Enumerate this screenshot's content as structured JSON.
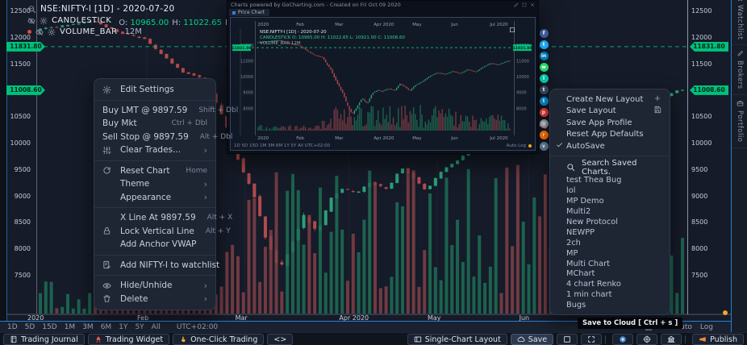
{
  "legend": {
    "symbol_text": "NSE:NIFTY-I [1D] - 2020-07-20",
    "series_name": "CANDLESTICK",
    "ohlc_items": [
      {
        "k": "O:",
        "v": "10965.00"
      },
      {
        "k": "H:",
        "v": "11022.65"
      },
      {
        "k": "L:",
        "v": "10921.00"
      },
      {
        "k": "C:",
        "v": "11008.60"
      }
    ],
    "volume_label": "VOLUME_BAR",
    "volume_value": "12M"
  },
  "context_menu": {
    "sections": [
      [
        {
          "label": "Edit Settings",
          "icon": "gear"
        }
      ],
      [
        {
          "label": "Buy LMT @ 9897.59",
          "shortcut": "Shift + Dbl",
          "flush": true
        },
        {
          "label": "Buy Mkt",
          "shortcut": "Ctrl + Dbl",
          "flush": true
        },
        {
          "label": "Sell Stop @ 9897.59",
          "shortcut": "Alt + Dbl",
          "flush": true
        },
        {
          "label": "Clear Trades...",
          "icon": "sliders",
          "chevron": true
        }
      ],
      [
        {
          "label": "Reset Chart",
          "icon": "refresh",
          "shortcut": "Home"
        },
        {
          "label": "Theme",
          "chevron": true
        },
        {
          "label": "Appearance",
          "chevron": true
        }
      ],
      [
        {
          "label": "X Line At 9897.59",
          "shortcut": "Alt + X"
        },
        {
          "label": "Lock Vertical Line",
          "icon": "lock",
          "shortcut": "Alt + Y"
        },
        {
          "label": "Add Anchor VWAP"
        }
      ],
      [
        {
          "label": "Add NIFTY-I to watchlist",
          "icon": "watchlist-add"
        }
      ],
      [
        {
          "label": "Hide/Unhide",
          "icon": "eye",
          "chevron": true
        },
        {
          "label": "Delete",
          "icon": "trash",
          "chevron": true
        }
      ]
    ]
  },
  "layout_menu": {
    "items": [
      {
        "label": "Create New Layout",
        "right_icon": "plus"
      },
      {
        "label": "Save Layout",
        "right_icon": "save"
      },
      {
        "label": "Save App Profile"
      },
      {
        "label": "Reset App Defaults"
      },
      {
        "label": "AutoSave",
        "checked": true
      }
    ],
    "search_label": "Search Saved Charts.",
    "saved_charts": [
      "test Thea Bug",
      "lol",
      "MP Demo",
      "Multi2",
      "New Protocol",
      "NEWPP",
      "2ch",
      "MP",
      "Multi Chart",
      "MChart",
      "4 chart Renko",
      "1 min chart",
      "Bugs"
    ]
  },
  "tooltip_text": "Save to Cloud [ Ctrl + s ]",
  "timeframe_bar": {
    "items": [
      "1D",
      "5D",
      "15D",
      "1M",
      "3M",
      "6M",
      "1Y",
      "5Y",
      "All"
    ],
    "timezone": "UTC+02:00",
    "auto": "Auto",
    "log": "Log"
  },
  "bottom_bar": {
    "left": [
      {
        "label": "Trading Journal",
        "icon": "journal"
      },
      {
        "label": "Trading Widget",
        "icon": "rocket"
      },
      {
        "label": "One-Click Trading",
        "icon": "one-click"
      },
      {
        "label": "<>"
      }
    ],
    "right": [
      {
        "label": "Single-Chart Layout",
        "icon": "layout"
      },
      {
        "label": "Save",
        "icon": "cloud",
        "active": true
      },
      {
        "icon": "frame"
      },
      {
        "icon": "expand"
      },
      {
        "divider": true
      },
      {
        "icon": "chat"
      },
      {
        "icon": "target"
      },
      {
        "icon": "bank"
      },
      {
        "divider": true
      },
      {
        "label": "Publish",
        "icon": "megaphone"
      }
    ]
  },
  "sidebar": {
    "tabs": [
      {
        "label": "Watchlist",
        "icon": "bookmark"
      },
      {
        "label": "Brokers",
        "icon": "wrench"
      },
      {
        "label": "Portfolio",
        "icon": "portfolio"
      }
    ]
  },
  "floating_window": {
    "title": "Charts powered by GoCharting.com - Created on Fri Oct 09 2020",
    "tab": "Price Chart",
    "legend_symbol": "NSE:NIFTY-I [1D] - 2020-07-20",
    "legend_series": "CANDLESTICK O: 10965.00 H: 11022.65 L: 10921.00 C: 11008.60",
    "legend_volume": "VOLUME_BAR 12M",
    "months": [
      "2020",
      "Feb",
      "Mar",
      "Apr 2020",
      "May",
      "Jun",
      "Jul 2020"
    ],
    "month_fracs": [
      0.01,
      0.16,
      0.31,
      0.46,
      0.61,
      0.76,
      0.91
    ],
    "toolbar_left": "1D  5D  15D  1M  3M  6M  1Y  5Y  All      UTC+02:00",
    "toolbar_right": "Auto   Log",
    "level_label": "11831.80"
  },
  "share_icons": [
    {
      "name": "facebook",
      "color": "#3b5998",
      "glyph": "f"
    },
    {
      "name": "twitter",
      "color": "#1da1f2",
      "glyph": "t"
    },
    {
      "name": "linkedin",
      "color": "#0077b5",
      "glyph": "in"
    },
    {
      "name": "whatsapp",
      "color": "#25d366",
      "glyph": "w"
    },
    {
      "name": "line",
      "color": "#06c1a5",
      "glyph": "l"
    },
    {
      "name": "tumblr",
      "color": "#35465c",
      "glyph": "t"
    },
    {
      "name": "telegram",
      "color": "#0088cc",
      "glyph": "t"
    },
    {
      "name": "pinterest",
      "color": "#e53935",
      "glyph": "p"
    },
    {
      "name": "email",
      "color": "#90949c",
      "glyph": "@"
    },
    {
      "name": "reddit",
      "color": "#ff6f00",
      "glyph": "r"
    },
    {
      "name": "vk",
      "color": "#5f7d95",
      "glyph": "v"
    }
  ],
  "chart_data": {
    "type": "candlestick",
    "symbol": "NSE:NIFTY-I",
    "interval": "1D",
    "date": "2020-07-20",
    "ohlc": {
      "open": 10965.0,
      "high": 11022.65,
      "low": 10921.0,
      "close": 11008.6
    },
    "volume_label": "12M",
    "price_levels": [
      {
        "label": "11831.80",
        "price": 11831.8,
        "dashed": true
      },
      {
        "label": "11008.60",
        "price": 11008.6,
        "dashed": false
      }
    ],
    "y_ticks": [
      12500,
      12000,
      11500,
      10500,
      10000,
      9500,
      9000,
      8500,
      8000,
      7500
    ],
    "x_ticks": [
      {
        "label": "2020",
        "f": 0.0
      },
      {
        "label": "Feb",
        "f": 0.17
      },
      {
        "label": "Mar",
        "f": 0.322
      },
      {
        "label": "Apr 2020",
        "f": 0.483
      },
      {
        "label": "May",
        "f": 0.62
      },
      {
        "label": "Jun",
        "f": 0.762
      }
    ],
    "price_path_anchors": [
      [
        0,
        12150
      ],
      [
        0.04,
        12220
      ],
      [
        0.09,
        12320
      ],
      [
        0.13,
        12100
      ],
      [
        0.17,
        11980
      ],
      [
        0.2,
        11650
      ],
      [
        0.23,
        11350
      ],
      [
        0.26,
        11250
      ],
      [
        0.28,
        10800
      ],
      [
        0.3,
        10300
      ],
      [
        0.32,
        9600
      ],
      [
        0.345,
        8900
      ],
      [
        0.36,
        8200
      ],
      [
        0.38,
        7610
      ],
      [
        0.4,
        8100
      ],
      [
        0.42,
        8650
      ],
      [
        0.44,
        8300
      ],
      [
        0.46,
        8950
      ],
      [
        0.48,
        9150
      ],
      [
        0.5,
        9050
      ],
      [
        0.52,
        9250
      ],
      [
        0.55,
        9150
      ],
      [
        0.57,
        9550
      ],
      [
        0.59,
        9350
      ],
      [
        0.61,
        9100
      ],
      [
        0.63,
        9450
      ],
      [
        0.66,
        9700
      ],
      [
        0.69,
        10050
      ],
      [
        0.72,
        10250
      ],
      [
        0.75,
        10150
      ],
      [
        0.78,
        10350
      ],
      [
        0.81,
        10200
      ],
      [
        0.84,
        10450
      ],
      [
        0.87,
        10300
      ],
      [
        0.9,
        10600
      ],
      [
        0.93,
        10850
      ],
      [
        0.96,
        10750
      ],
      [
        1,
        11008
      ]
    ]
  }
}
